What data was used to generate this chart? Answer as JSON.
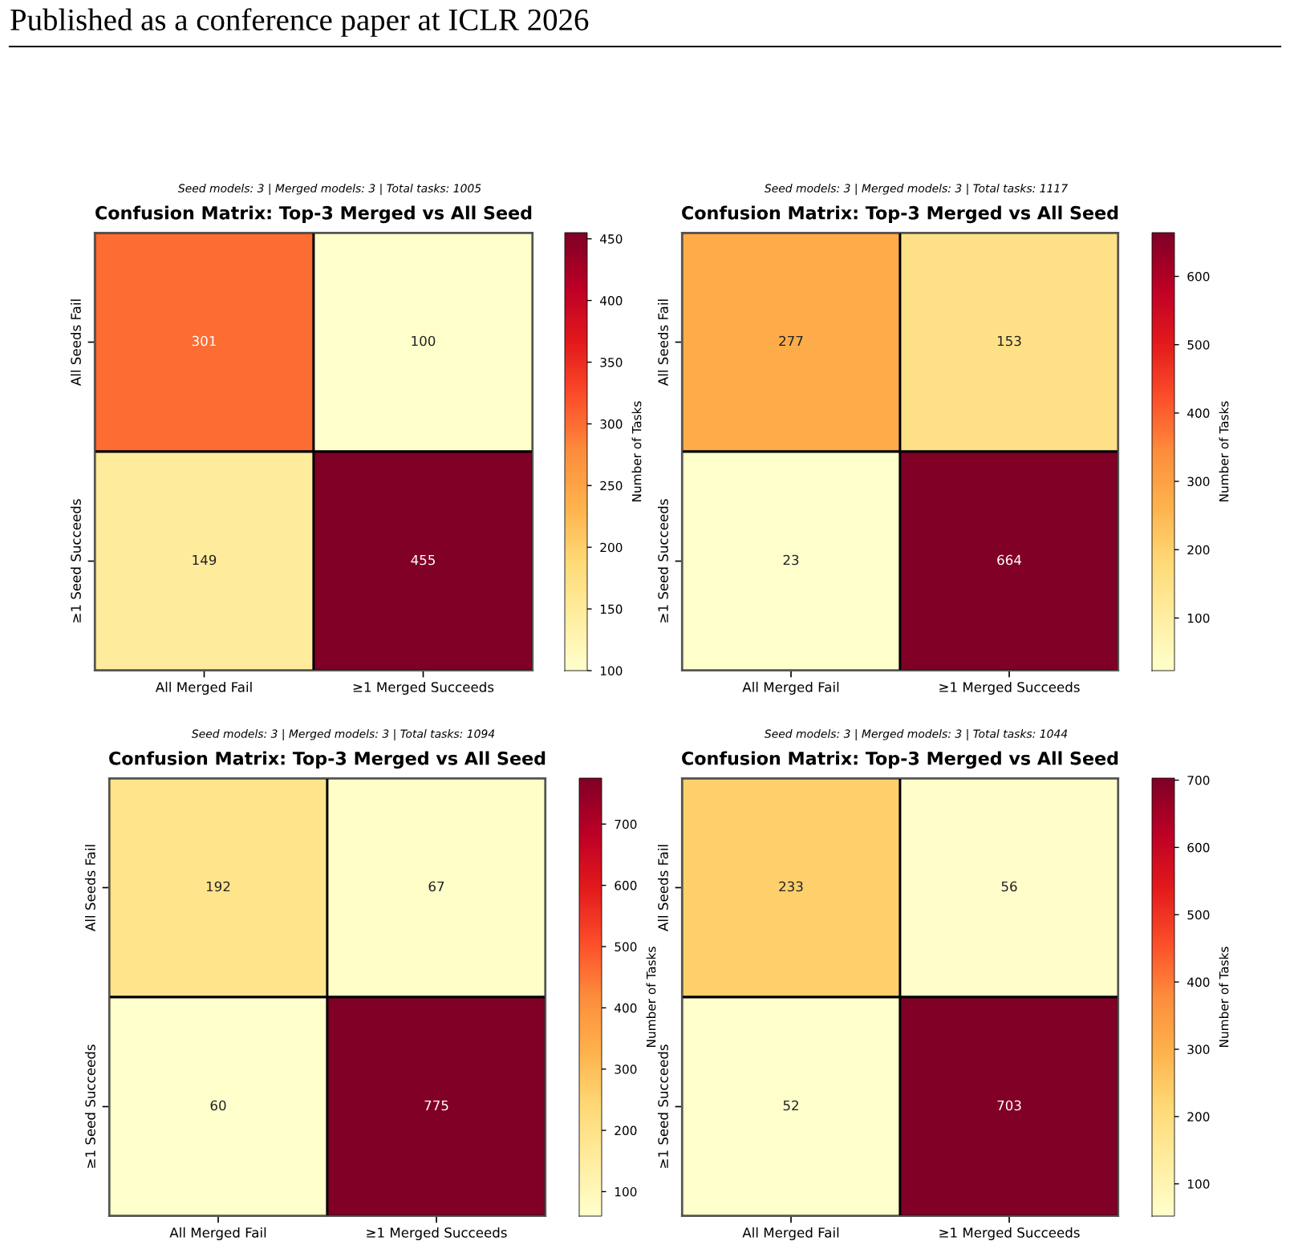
{
  "chart_data": [
    {
      "type": "heatmap",
      "title": "Confusion Matrix: Top-3 Merged vs All Seed",
      "subtitle": "Seed models: 3 | Merged models: 3 | Total tasks: 1005",
      "annotations": [
        "Published as a conference paper at ICLR 2026"
      ],
      "categories": [
        "All Merged Fail",
        "≥1 Merged Succeeds"
      ],
      "y_categories": [
        "All Seeds Fail",
        "≥1 Seed Succeeds"
      ],
      "cells": [
        [
          301,
          100
        ],
        [
          149,
          455
        ]
      ],
      "clabel": "Number of Tasks",
      "clim": [
        100,
        455
      ],
      "cticks": [
        100,
        150,
        200,
        250,
        300,
        350,
        400,
        450
      ],
      "data_labels": true
    },
    {
      "type": "heatmap",
      "title": "Confusion Matrix: Top-3 Merged vs All Seed",
      "subtitle": "Seed models: 3 | Merged models: 3 | Total tasks: 1117",
      "categories": [
        "All Merged Fail",
        "≥1 Merged Succeeds"
      ],
      "y_categories": [
        "All Seeds Fail",
        "≥1 Seed Succeeds"
      ],
      "cells": [
        [
          277,
          153
        ],
        [
          23,
          664
        ]
      ],
      "clabel": "Number of Tasks",
      "clim": [
        23,
        664
      ],
      "cticks": [
        100,
        200,
        300,
        400,
        500,
        600
      ],
      "data_labels": true
    },
    {
      "type": "heatmap",
      "title": "Confusion Matrix: Top-3 Merged vs All Seed",
      "subtitle": "Seed models: 3 | Merged models: 3 | Total tasks: 1094",
      "categories": [
        "All Merged Fail",
        "≥1 Merged Succeeds"
      ],
      "y_categories": [
        "All Seeds Fail",
        "≥1 Seed Succeeds"
      ],
      "cells": [
        [
          192,
          67
        ],
        [
          60,
          775
        ]
      ],
      "clabel": "Number of Tasks",
      "clim": [
        60,
        775
      ],
      "cticks": [
        100,
        200,
        300,
        400,
        500,
        600,
        700
      ],
      "data_labels": true
    },
    {
      "type": "heatmap",
      "title": "Confusion Matrix: Top-3 Merged vs All Seed",
      "subtitle": "Seed models: 3 | Merged models: 3 | Total tasks: 1044",
      "categories": [
        "All Merged Fail",
        "≥1 Merged Succeeds"
      ],
      "y_categories": [
        "All Seeds Fail",
        "≥1 Seed Succeeds"
      ],
      "cells": [
        [
          233,
          56
        ],
        [
          52,
          703
        ]
      ],
      "clabel": "Number of Tasks",
      "clim": [
        52,
        703
      ],
      "cticks": [
        100,
        200,
        300,
        400,
        500,
        600,
        700
      ],
      "data_labels": true
    }
  ]
}
